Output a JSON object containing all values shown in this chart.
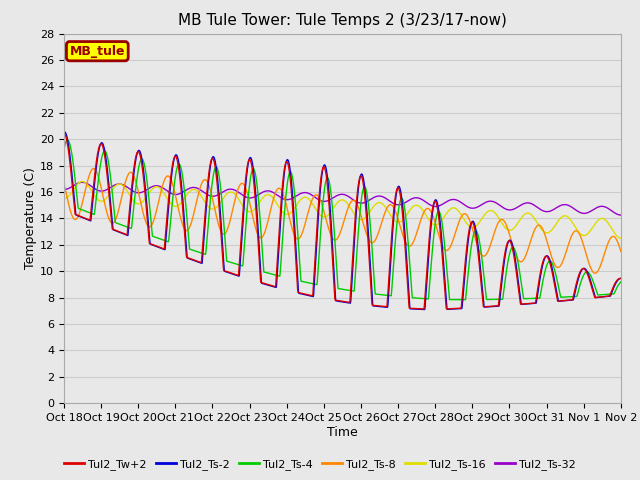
{
  "title": "MB Tule Tower: Tule Temps 2 (3/23/17-now)",
  "xlabel": "Time",
  "ylabel": "Temperature (C)",
  "ylim": [
    0,
    28
  ],
  "yticks": [
    0,
    2,
    4,
    6,
    8,
    10,
    12,
    14,
    16,
    18,
    20,
    22,
    24,
    26,
    28
  ],
  "xtick_labels": [
    "Oct 18",
    "Oct 19",
    "Oct 20",
    "Oct 21",
    "Oct 22",
    "Oct 23",
    "Oct 24",
    "Oct 25",
    "Oct 26",
    "Oct 27",
    "Oct 28",
    "Oct 29",
    "Oct 30",
    "Oct 31",
    "Nov 1",
    "Nov 2"
  ],
  "legend_label": "MB_tule",
  "series_labels": [
    "Tul2_Tw+2",
    "Tul2_Ts-2",
    "Tul2_Ts-4",
    "Tul2_Ts-8",
    "Tul2_Ts-16",
    "Tul2_Ts-32"
  ],
  "series_colors": [
    "#dd0000",
    "#0000dd",
    "#00cc00",
    "#ff8800",
    "#dddd00",
    "#9900cc"
  ],
  "background_color": "#e8e8e8",
  "plot_bg_color": "#e8e8e8",
  "grid_color": "#cccccc",
  "title_fontsize": 11,
  "axis_fontsize": 9,
  "tick_fontsize": 8,
  "legend_box_color": "#ffff00",
  "legend_box_edge": "#990000"
}
